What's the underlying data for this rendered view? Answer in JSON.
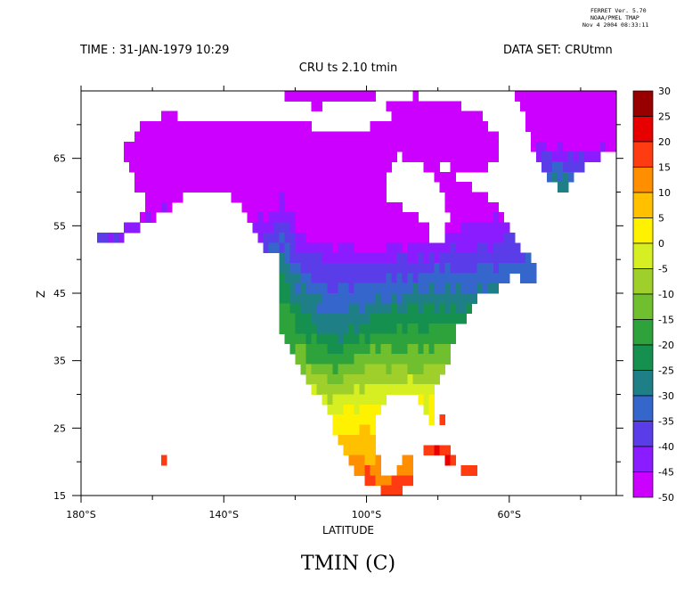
{
  "header": {
    "ferret_version": "FERRET Ver. 5.70",
    "ferret_org": "NOAA/PMEL TMAP",
    "ferret_date": "Nov  4 2004 08:33:11",
    "time_text": "TIME : 31-JAN-1979 10:29",
    "dataset_text": "DATA SET: CRUtmn",
    "plot_title": "CRU ts 2.10 tmin",
    "units_title": "TMIN (C)"
  },
  "colors": {
    "water": "#ffffff",
    "axis": "#000000"
  },
  "chart_data": {
    "type": "heatmap",
    "title": "CRU ts 2.10 tmin",
    "xlabel": "LATITUDE",
    "ylabel": "Z",
    "xlim": [
      -180,
      -30
    ],
    "ylim": [
      15,
      75
    ],
    "x_ticks": [
      {
        "value": -180,
        "label": "180°S"
      },
      {
        "value": -140,
        "label": "140°S"
      },
      {
        "value": -100,
        "label": "100°S"
      },
      {
        "value": -60,
        "label": "60°S"
      }
    ],
    "y_ticks": [
      {
        "value": 15,
        "label": "15"
      },
      {
        "value": 25,
        "label": "25"
      },
      {
        "value": 35,
        "label": "35"
      },
      {
        "value": 45,
        "label": "45"
      },
      {
        "value": 55,
        "label": "55"
      },
      {
        "value": 65,
        "label": "65"
      }
    ],
    "colorbar": {
      "title": "TMIN (C)",
      "levels": [
        -50,
        -45,
        -40,
        -35,
        -30,
        -25,
        -20,
        -15,
        -10,
        -5,
        0,
        5,
        10,
        15,
        20,
        25,
        30
      ],
      "level_labels": [
        "-50",
        "-45",
        "-40",
        "-35",
        "-30",
        "-25",
        "-20",
        "-15",
        "-10",
        "-5",
        "0",
        "5",
        "10",
        "15",
        "20",
        "25",
        "30"
      ],
      "colors": [
        "#cc00ff",
        "#8a1cff",
        "#5a3ce8",
        "#3566cc",
        "#1f7f86",
        "#16904f",
        "#2ea33b",
        "#6fbf2f",
        "#9fcf2a",
        "#d6ef22",
        "#fff200",
        "#ffc000",
        "#ff8f00",
        "#ff3b12",
        "#e60000",
        "#980000"
      ]
    },
    "field": {
      "lon_min": -180,
      "lon_max": -30,
      "lat_min": 15,
      "lat_max": 75,
      "resolution_deg": 1.5,
      "description": "Gridded January minimum temperature over North America and Greenland shown as colored filled cells."
    }
  }
}
